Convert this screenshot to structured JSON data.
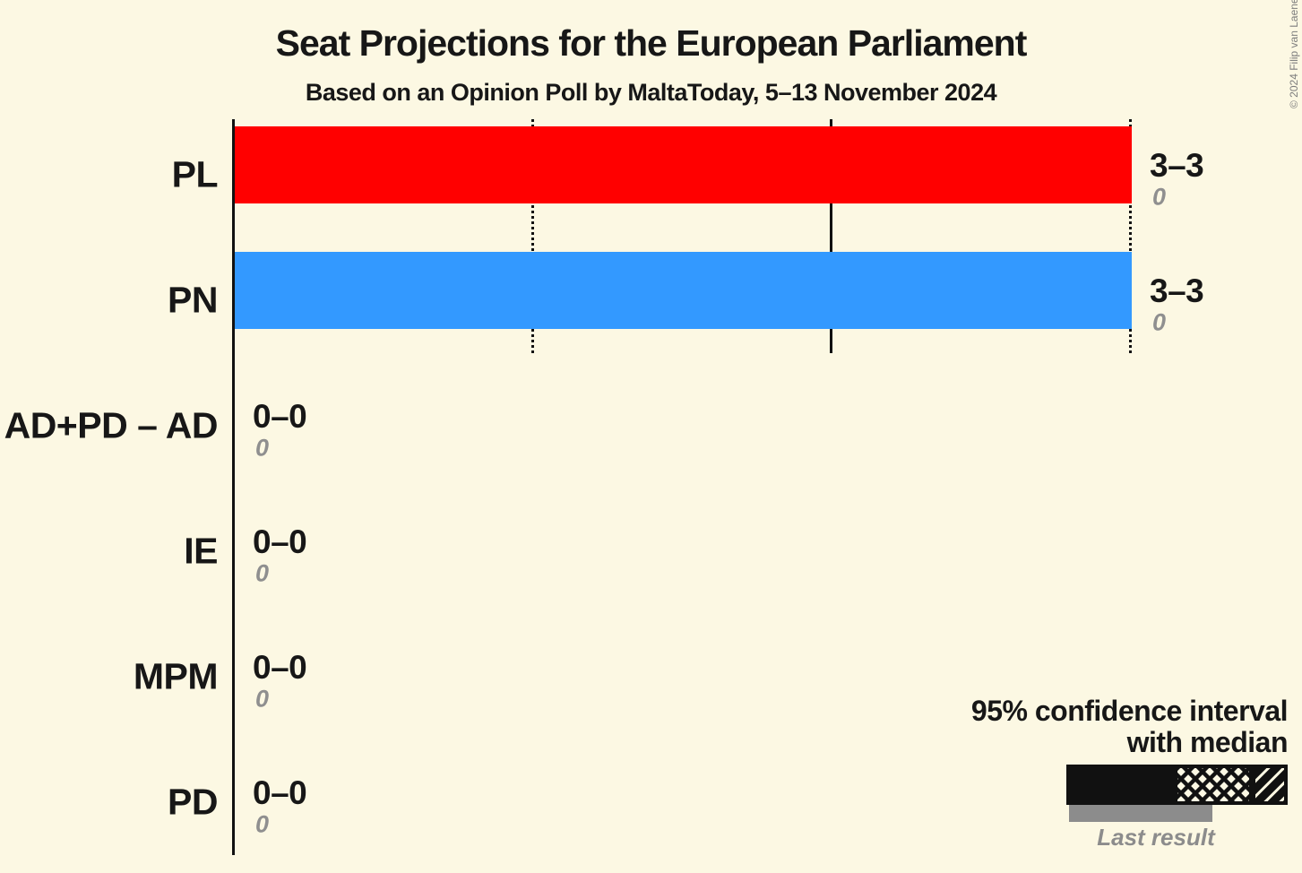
{
  "title": "Seat Projections for the European Parliament",
  "subtitle": "Based on an Opinion Poll by MaltaToday, 5–13 November 2024",
  "copyright": "© 2024 Filip van Laenen",
  "colors": {
    "background": "#FCF8E3",
    "pl": "#FF0000",
    "pn": "#3399FF",
    "gray": "#8C8C8C",
    "text": "#171717"
  },
  "legend": {
    "line1": "95% confidence interval",
    "line2": "with median",
    "last_result_label": "Last result"
  },
  "chart_data": {
    "type": "bar",
    "orientation": "horizontal",
    "unit": "seats",
    "x_axis": {
      "min": 0,
      "max": 3,
      "tick_labels_visible": false,
      "gridlines": [
        {
          "value": 1,
          "style": "dotted"
        },
        {
          "value": 2,
          "style": "solid"
        },
        {
          "value": 3,
          "style": "dotted"
        }
      ]
    },
    "categories": [
      "PL",
      "PN",
      "AD+PD – AD",
      "IE",
      "MPM",
      "PD"
    ],
    "rows": [
      {
        "party": "PL",
        "ci_label": "3–3",
        "low": 3,
        "high": 3,
        "median": 3,
        "last_result": 0,
        "last_result_label": "0",
        "color": "#FF0000"
      },
      {
        "party": "PN",
        "ci_label": "3–3",
        "low": 3,
        "high": 3,
        "median": 3,
        "last_result": 0,
        "last_result_label": "0",
        "color": "#3399FF"
      },
      {
        "party": "AD+PD – AD",
        "ci_label": "0–0",
        "low": 0,
        "high": 0,
        "median": 0,
        "last_result": 0,
        "last_result_label": "0",
        "color": "#8C8C8C"
      },
      {
        "party": "IE",
        "ci_label": "0–0",
        "low": 0,
        "high": 0,
        "median": 0,
        "last_result": 0,
        "last_result_label": "0",
        "color": "#8C8C8C"
      },
      {
        "party": "MPM",
        "ci_label": "0–0",
        "low": 0,
        "high": 0,
        "median": 0,
        "last_result": 0,
        "last_result_label": "0",
        "color": "#8C8C8C"
      },
      {
        "party": "PD",
        "ci_label": "0–0",
        "low": 0,
        "high": 0,
        "median": 0,
        "last_result": 0,
        "last_result_label": "0",
        "color": "#8C8C8C"
      }
    ]
  }
}
